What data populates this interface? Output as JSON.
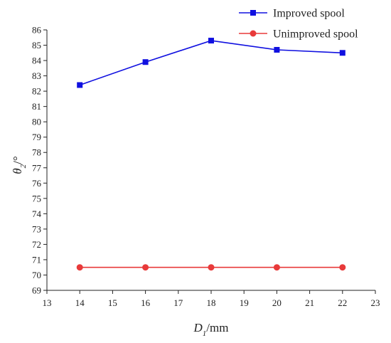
{
  "chart_data": {
    "type": "line",
    "title": "",
    "xlabel": {
      "symbol": "D",
      "subscript": "1",
      "unit": "/mm"
    },
    "ylabel": {
      "symbol": "θ",
      "subscript": "2",
      "unit": "/°"
    },
    "xlim": [
      13,
      23
    ],
    "ylim": [
      69,
      86
    ],
    "xticks": [
      13,
      14,
      15,
      16,
      17,
      18,
      19,
      20,
      21,
      22,
      23
    ],
    "yticks": [
      69,
      70,
      71,
      72,
      73,
      74,
      75,
      76,
      77,
      78,
      79,
      80,
      81,
      82,
      83,
      84,
      85,
      86
    ],
    "x": [
      14,
      16,
      18,
      20,
      22
    ],
    "series": [
      {
        "name": "Improved spool",
        "marker": "square",
        "color": "#1010e0",
        "values": [
          82.4,
          83.9,
          85.3,
          84.7,
          84.5
        ]
      },
      {
        "name": "Unimproved spool",
        "marker": "circle",
        "color": "#e83a3a",
        "values": [
          70.5,
          70.5,
          70.5,
          70.5,
          70.5
        ]
      }
    ],
    "legend_position": "top-right",
    "grid": false
  }
}
